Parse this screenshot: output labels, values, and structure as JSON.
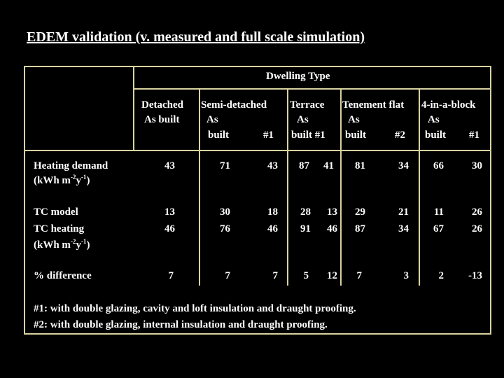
{
  "title": "EDEM validation (v. measured and full scale simulation)",
  "header": {
    "group_label": "Dwelling Type",
    "types": [
      "Detached",
      "Semi-detached",
      "Terrace",
      "Tenement flat",
      "4-in-a-block"
    ],
    "sub_as": [
      "As built",
      "As",
      "As",
      "As",
      "As"
    ],
    "sub_built": [
      "built",
      "#1",
      "built #1",
      "built",
      "#2",
      "built",
      "#1"
    ]
  },
  "rows": {
    "heating_demand": {
      "label1": "Heating demand",
      "label2_pre": "(kWh m",
      "label2_exp1": "-2",
      "label2_mid": "y",
      "label2_exp2": "-1",
      "label2_post": ")",
      "values": [
        "43",
        "71",
        "43",
        "87",
        "41",
        "81",
        "34",
        "66",
        "30"
      ]
    },
    "tc": {
      "label1": "TC model",
      "label2": "TC heating",
      "label3_pre": "(kWh m",
      "label3_exp1": "-2",
      "label3_mid": "y",
      "label3_exp2": "-1",
      "label3_post": ")",
      "model_values": [
        "13",
        "30",
        "18",
        "28",
        "13",
        "29",
        "21",
        "11",
        "26"
      ],
      "heating_values": [
        "46",
        "76",
        "46",
        "91",
        "46",
        "87",
        "34",
        "67",
        "26"
      ]
    },
    "difference": {
      "label": "% difference",
      "values": [
        "7",
        "7",
        "7",
        "5",
        "12",
        "7",
        "3",
        "2",
        "-13"
      ]
    }
  },
  "footnotes": {
    "note1": "#1: with double glazing, cavity and loft insulation and draught proofing.",
    "note2": "#2: with double glazing, internal insulation and draught proofing."
  },
  "colors": {
    "background": "#000000",
    "text": "#ffffff",
    "border": "#d8d2a0"
  }
}
